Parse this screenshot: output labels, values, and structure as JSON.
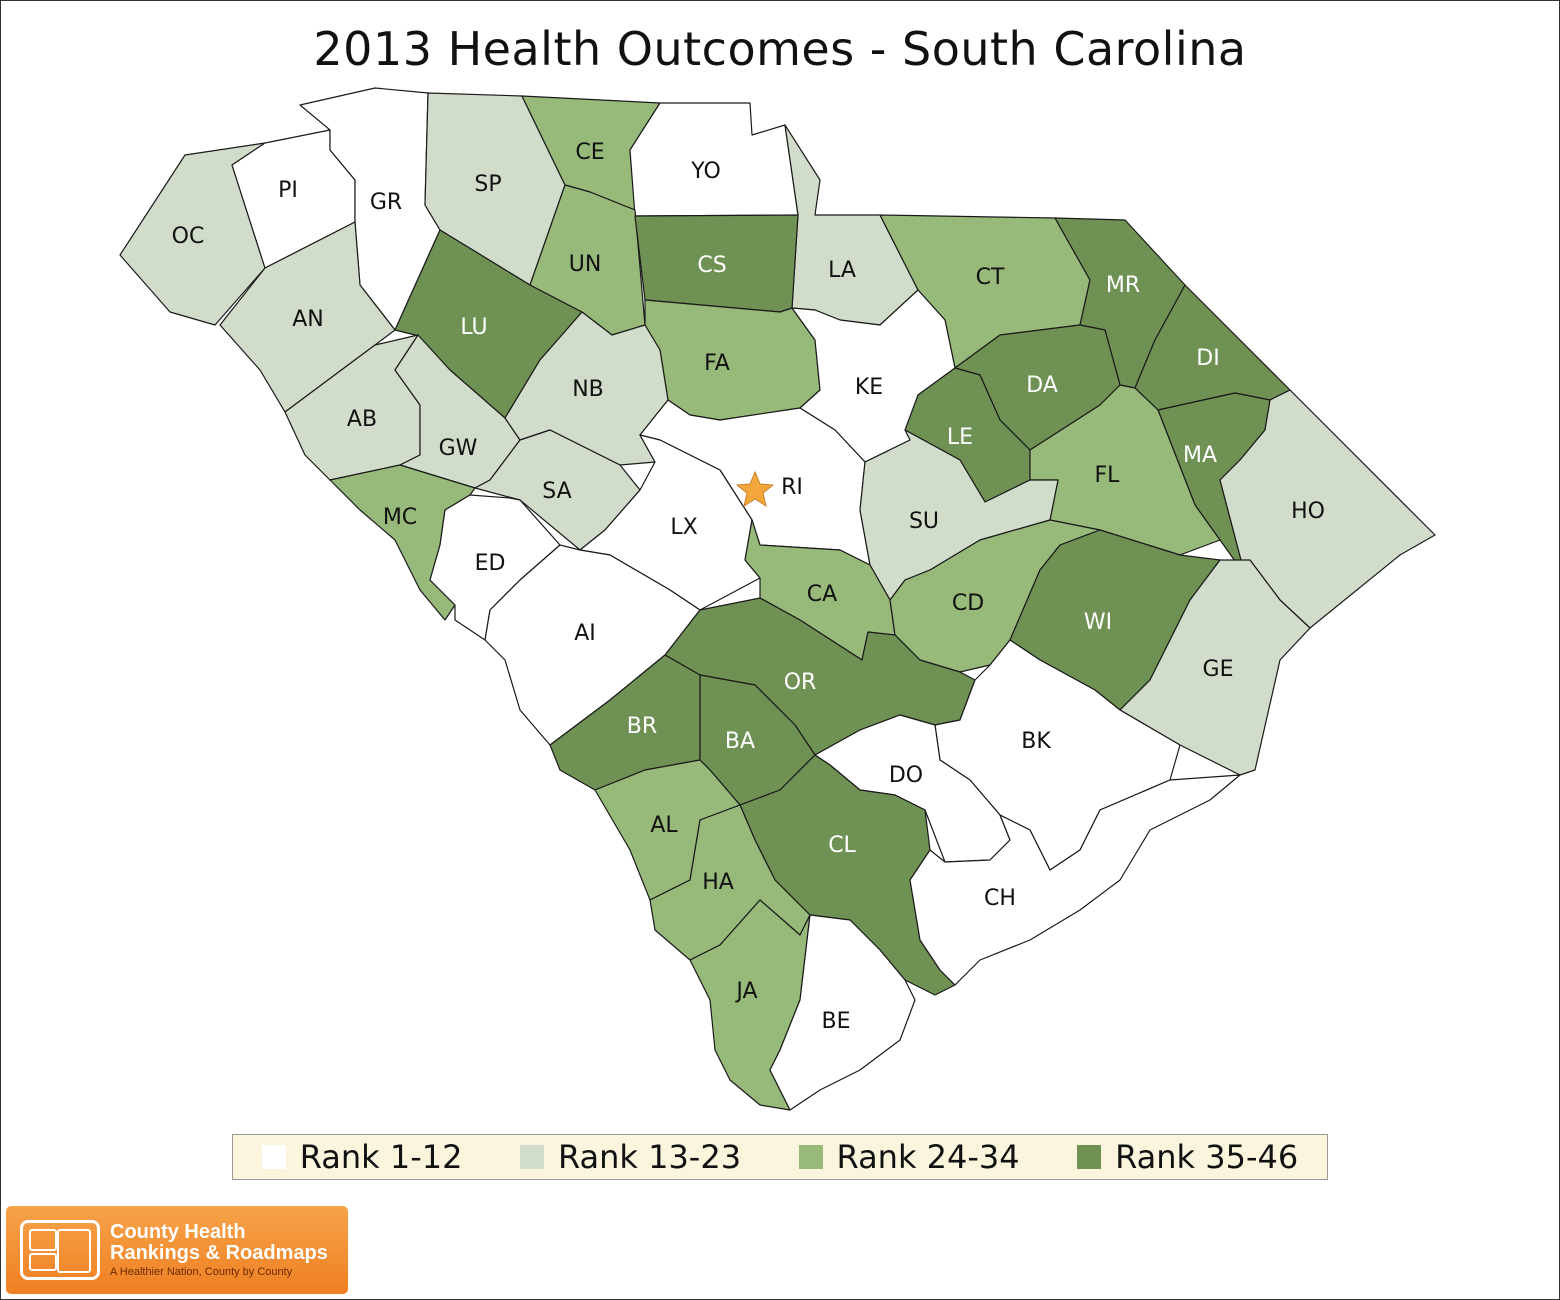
{
  "title": "2013 Health Outcomes - South Carolina",
  "colors": {
    "rank_1_12": "#ffffff",
    "rank_13_23": "#d1dccb",
    "rank_24_34": "#97ba7a",
    "rank_35_46": "#6f9254",
    "star": "#f3a63c"
  },
  "legend": [
    {
      "label": "Rank 1-12",
      "color": "#ffffff"
    },
    {
      "label": "Rank 13-23",
      "color": "#d1dccb"
    },
    {
      "label": "Rank 24-34",
      "color": "#97ba7a"
    },
    {
      "label": "Rank 35-46",
      "color": "#6f9254"
    }
  ],
  "counties": [
    {
      "abbr": "OC",
      "rank_group": "Rank 13-23"
    },
    {
      "abbr": "PI",
      "rank_group": "Rank 1-12"
    },
    {
      "abbr": "GR",
      "rank_group": "Rank 1-12"
    },
    {
      "abbr": "SP",
      "rank_group": "Rank 13-23"
    },
    {
      "abbr": "CE",
      "rank_group": "Rank 24-34"
    },
    {
      "abbr": "YO",
      "rank_group": "Rank 1-12"
    },
    {
      "abbr": "LA",
      "rank_group": "Rank 13-23"
    },
    {
      "abbr": "CT",
      "rank_group": "Rank 24-34"
    },
    {
      "abbr": "MR",
      "rank_group": "Rank 35-46"
    },
    {
      "abbr": "AN",
      "rank_group": "Rank 13-23"
    },
    {
      "abbr": "LU",
      "rank_group": "Rank 35-46"
    },
    {
      "abbr": "UN",
      "rank_group": "Rank 24-34"
    },
    {
      "abbr": "CS",
      "rank_group": "Rank 35-46"
    },
    {
      "abbr": "FA",
      "rank_group": "Rank 24-34"
    },
    {
      "abbr": "KE",
      "rank_group": "Rank 1-12"
    },
    {
      "abbr": "DA",
      "rank_group": "Rank 35-46"
    },
    {
      "abbr": "DI",
      "rank_group": "Rank 35-46"
    },
    {
      "abbr": "AB",
      "rank_group": "Rank 13-23"
    },
    {
      "abbr": "GW",
      "rank_group": "Rank 13-23"
    },
    {
      "abbr": "NB",
      "rank_group": "Rank 13-23"
    },
    {
      "abbr": "LE",
      "rank_group": "Rank 35-46"
    },
    {
      "abbr": "MA",
      "rank_group": "Rank 35-46"
    },
    {
      "abbr": "FL",
      "rank_group": "Rank 24-34"
    },
    {
      "abbr": "MC",
      "rank_group": "Rank 24-34"
    },
    {
      "abbr": "SA",
      "rank_group": "Rank 13-23"
    },
    {
      "abbr": "RI",
      "rank_group": "Rank 1-12"
    },
    {
      "abbr": "LX",
      "rank_group": "Rank 1-12"
    },
    {
      "abbr": "SU",
      "rank_group": "Rank 13-23"
    },
    {
      "abbr": "HO",
      "rank_group": "Rank 13-23"
    },
    {
      "abbr": "ED",
      "rank_group": "Rank 1-12"
    },
    {
      "abbr": "CA",
      "rank_group": "Rank 24-34"
    },
    {
      "abbr": "CD",
      "rank_group": "Rank 24-34"
    },
    {
      "abbr": "WI",
      "rank_group": "Rank 35-46"
    },
    {
      "abbr": "AI",
      "rank_group": "Rank 1-12"
    },
    {
      "abbr": "OR",
      "rank_group": "Rank 35-46"
    },
    {
      "abbr": "GE",
      "rank_group": "Rank 13-23"
    },
    {
      "abbr": "BR",
      "rank_group": "Rank 35-46"
    },
    {
      "abbr": "BA",
      "rank_group": "Rank 35-46"
    },
    {
      "abbr": "BK",
      "rank_group": "Rank 1-12"
    },
    {
      "abbr": "DO",
      "rank_group": "Rank 1-12"
    },
    {
      "abbr": "AL",
      "rank_group": "Rank 24-34"
    },
    {
      "abbr": "CL",
      "rank_group": "Rank 35-46"
    },
    {
      "abbr": "HA",
      "rank_group": "Rank 24-34"
    },
    {
      "abbr": "CH",
      "rank_group": "Rank 1-12"
    },
    {
      "abbr": "JA",
      "rank_group": "Rank 24-34"
    },
    {
      "abbr": "BE",
      "rank_group": "Rank 1-12"
    }
  ],
  "capital_marker": "star-icon",
  "logo": {
    "line1": "County Health",
    "line2": "Rankings & Roadmaps",
    "tagline": "A Healthier Nation, County by County"
  }
}
